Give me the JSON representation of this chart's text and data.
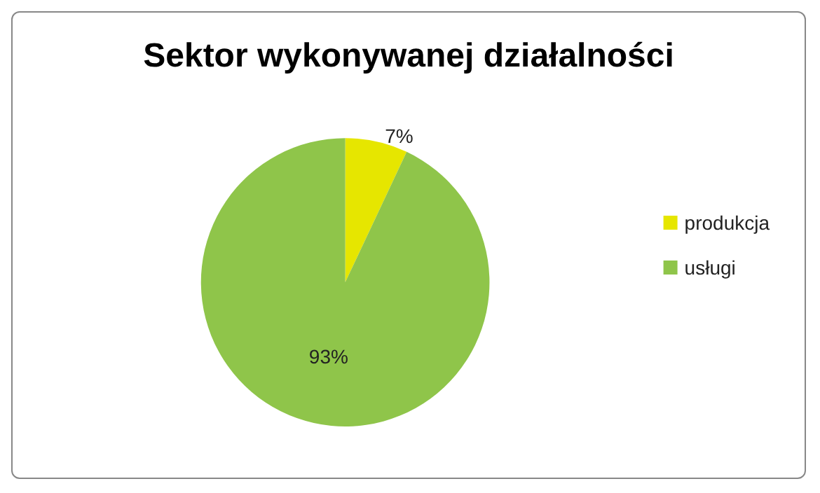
{
  "chart_data": {
    "type": "pie",
    "title": "Sektor wykonywanej działalności",
    "categories": [
      "produkcja",
      "usługi"
    ],
    "values": [
      7,
      93
    ],
    "colors": [
      "#e6e600",
      "#8fc54a"
    ],
    "value_labels": [
      "7%",
      "93%"
    ],
    "legend": "right"
  }
}
